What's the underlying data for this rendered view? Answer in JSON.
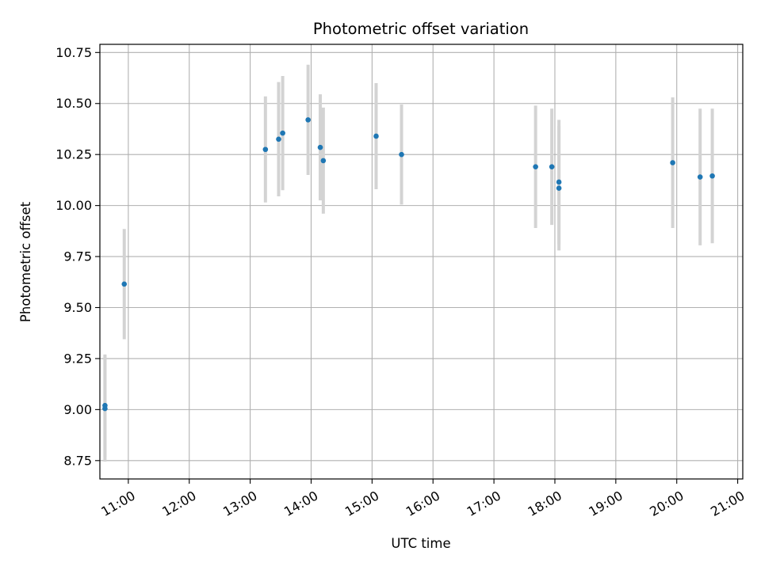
{
  "chart_data": {
    "type": "scatter",
    "title": "Photometric offset variation",
    "xlabel": "UTC time",
    "ylabel": "Photometric offset",
    "grid": true,
    "xlim": [
      "10:32",
      "21:05"
    ],
    "ylim": [
      8.66,
      10.79
    ],
    "x_ticks": [
      "11:00",
      "12:00",
      "13:00",
      "14:00",
      "15:00",
      "16:00",
      "17:00",
      "18:00",
      "19:00",
      "20:00",
      "21:00"
    ],
    "y_ticks": [
      "8.75",
      "9.00",
      "9.25",
      "9.50",
      "9.75",
      "10.00",
      "10.25",
      "10.50",
      "10.75"
    ],
    "series": [
      {
        "marker_color": "#1f77b4",
        "errorbar_color": "#d3d3d3",
        "points": [
          {
            "time": "10:37",
            "y": 9.02,
            "err": 0.25
          },
          {
            "time": "10:37",
            "y": 9.005,
            "err": 0.26
          },
          {
            "time": "10:56",
            "y": 9.615,
            "err": 0.27
          },
          {
            "time": "13:15",
            "y": 10.275,
            "err": 0.26
          },
          {
            "time": "13:28",
            "y": 10.325,
            "err": 0.28
          },
          {
            "time": "13:32",
            "y": 10.355,
            "err": 0.28
          },
          {
            "time": "13:57",
            "y": 10.42,
            "err": 0.27
          },
          {
            "time": "14:09",
            "y": 10.285,
            "err": 0.26
          },
          {
            "time": "14:12",
            "y": 10.22,
            "err": 0.26
          },
          {
            "time": "15:04",
            "y": 10.34,
            "err": 0.26
          },
          {
            "time": "15:29",
            "y": 10.25,
            "err": 0.245
          },
          {
            "time": "17:41",
            "y": 10.19,
            "err": 0.3
          },
          {
            "time": "17:57",
            "y": 10.19,
            "err": 0.285
          },
          {
            "time": "18:04",
            "y": 10.115,
            "err": 0.305
          },
          {
            "time": "18:04",
            "y": 10.085,
            "err": 0.305
          },
          {
            "time": "19:56",
            "y": 10.21,
            "err": 0.32
          },
          {
            "time": "20:23",
            "y": 10.14,
            "err": 0.335
          },
          {
            "time": "20:35",
            "y": 10.145,
            "err": 0.33
          }
        ]
      }
    ]
  }
}
